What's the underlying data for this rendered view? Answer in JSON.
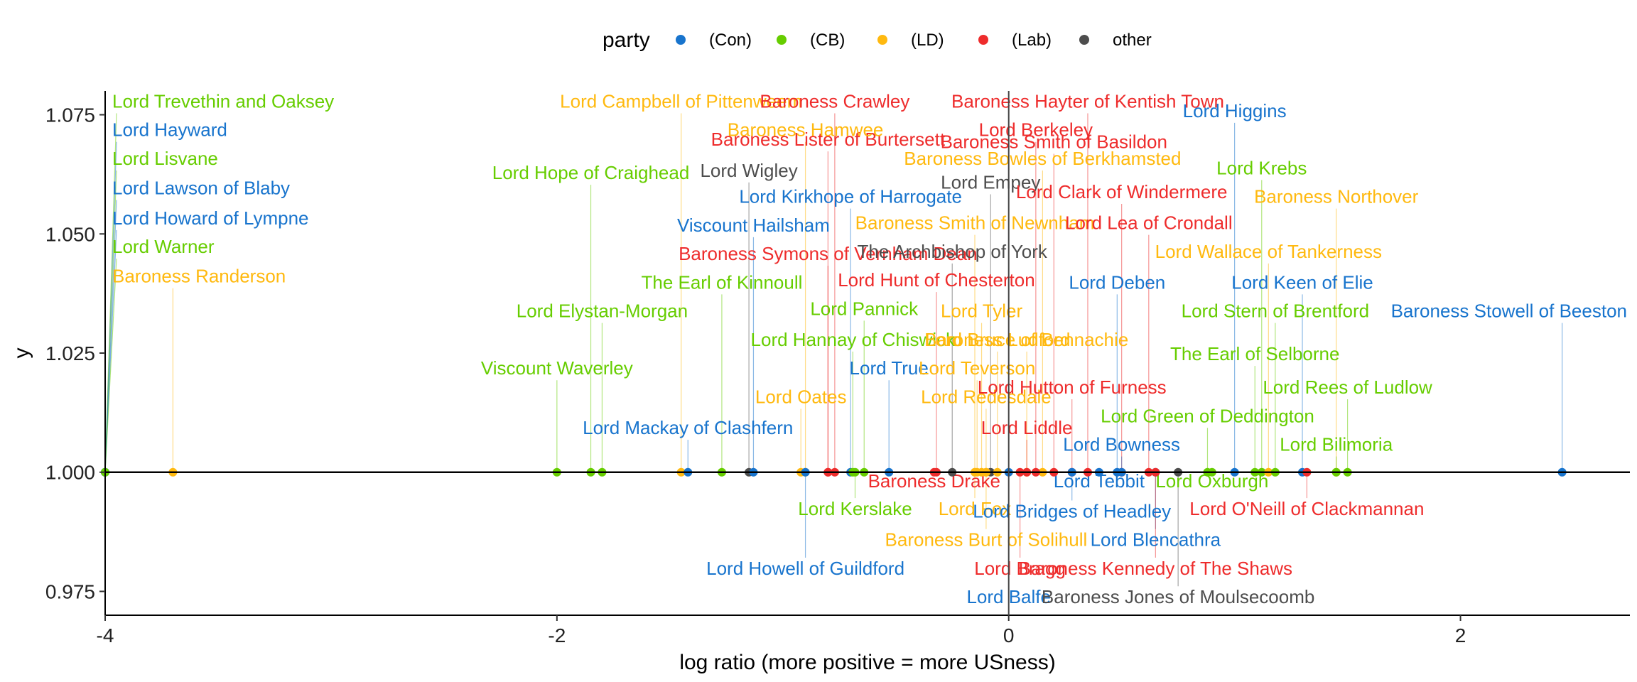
{
  "chart_data": {
    "type": "scatter",
    "title": "",
    "xlabel": "log ratio (more positive = more USness)",
    "ylabel": "y",
    "xlim": [
      -4,
      2.75
    ],
    "ylim": [
      0.97,
      1.08
    ],
    "x_ticks": [
      "-4",
      "-2",
      "0",
      "2"
    ],
    "x_tick_values": [
      -4,
      -2,
      0,
      2
    ],
    "y_ticks": [
      "0.975",
      "1.000",
      "1.025",
      "1.050",
      "1.075"
    ],
    "y_tick_values": [
      0.975,
      1.0,
      1.025,
      1.05,
      1.075
    ],
    "grid": false,
    "legend": {
      "title": "party",
      "placement": "top",
      "entries": [
        {
          "key": "Con",
          "label": "(Con)",
          "color": "#1874CD"
        },
        {
          "key": "CB",
          "label": "(CB)",
          "color": "#66CD00"
        },
        {
          "key": "LD",
          "label": "(LD)",
          "color": "#FFB90F"
        },
        {
          "key": "Lab",
          "label": "(Lab)",
          "color": "#EE2C2C"
        },
        {
          "key": "other",
          "label": "other",
          "color": "#4D4D4D"
        }
      ]
    },
    "points": [
      {
        "name": "Lord Trevethin and Oaksey",
        "party": "CB",
        "x": -4.0,
        "label_y": 1.0765
      },
      {
        "name": "Lord Hayward",
        "party": "Con",
        "x": -4.0,
        "label_y": 1.0705
      },
      {
        "name": "Lord Lisvane",
        "party": "CB",
        "x": -4.0,
        "label_y": 1.0645
      },
      {
        "name": "Lord Lawson of Blaby",
        "party": "Con",
        "x": -4.0,
        "label_y": 1.0583
      },
      {
        "name": "Lord Howard of Lympne",
        "party": "Con",
        "x": -4.0,
        "label_y": 1.052
      },
      {
        "name": "Lord Warner",
        "party": "CB",
        "x": -4.0,
        "label_y": 1.046
      },
      {
        "name": "Baroness Randerson",
        "party": "LD",
        "x": -3.7,
        "label_y": 1.0398
      },
      {
        "name": "Lord Hope of Craighead",
        "party": "CB",
        "x": -1.85,
        "label_y": 1.0615
      },
      {
        "name": "Baroness Lister of Burtersett",
        "party": "Lab",
        "x": -0.8,
        "label_y": 1.0685
      },
      {
        "name": "Lord Campbell of Pittenweem",
        "party": "LD",
        "x": -1.45,
        "label_y": 1.0765
      },
      {
        "name": "Baroness Crawley",
        "party": "Lab",
        "x": -0.77,
        "label_y": 1.0765
      },
      {
        "name": "Baroness Hamwee",
        "party": "LD",
        "x": -0.9,
        "label_y": 1.0705
      },
      {
        "name": "Lord Wigley",
        "party": "other",
        "x": -1.15,
        "label_y": 1.062
      },
      {
        "name": "Lord Kirkhope of Harrogate",
        "party": "Con",
        "x": -0.7,
        "label_y": 1.0565
      },
      {
        "name": "Viscount Hailsham",
        "party": "Con",
        "x": -1.13,
        "label_y": 1.0505
      },
      {
        "name": "Baroness Symons of Vernham Dean",
        "party": "Lab",
        "x": -0.8,
        "label_y": 1.0445
      },
      {
        "name": "The Earl of Kinnoull",
        "party": "CB",
        "x": -1.27,
        "label_y": 1.0385
      },
      {
        "name": "Lord Elystan-Morgan",
        "party": "CB",
        "x": -1.8,
        "label_y": 1.0325
      },
      {
        "name": "Lord Hannay of Chiswick",
        "party": "CB",
        "x": -0.69,
        "label_y": 1.0265
      },
      {
        "name": "Viscount Waverley",
        "party": "CB",
        "x": -2.0,
        "label_y": 1.0205
      },
      {
        "name": "Lord Mackay of Clashfern",
        "party": "Con",
        "x": -1.42,
        "label_y": 1.008
      },
      {
        "name": "Lord Oates",
        "party": "LD",
        "x": -0.92,
        "label_y": 1.0145
      },
      {
        "name": "Lord Pannick",
        "party": "CB",
        "x": -0.64,
        "label_y": 1.033
      },
      {
        "name": "Lord True",
        "party": "Con",
        "x": -0.53,
        "label_y": 1.0205
      },
      {
        "name": "Lord Hunt of Chesterton",
        "party": "Lab",
        "x": -0.32,
        "label_y": 1.039
      },
      {
        "name": "The Archbishop of York",
        "party": "other",
        "x": -0.25,
        "label_y": 1.045
      },
      {
        "name": "Baroness Hayter of Kentish Town",
        "party": "Lab",
        "x": 0.35,
        "label_y": 1.0765
      },
      {
        "name": "Lord Empey",
        "party": "other",
        "x": -0.08,
        "label_y": 1.0595
      },
      {
        "name": "Baroness Bowles of Berkhamsted",
        "party": "LD",
        "x": 0.15,
        "label_y": 1.0645
      },
      {
        "name": "Lord Berkeley",
        "party": "Lab",
        "x": 0.12,
        "label_y": 1.0705
      },
      {
        "name": "Baroness Smith of Basildon",
        "party": "Lab",
        "x": 0.2,
        "label_y": 1.068
      },
      {
        "name": "Lord Clark of Windermere",
        "party": "Lab",
        "x": 0.5,
        "label_y": 1.0575
      },
      {
        "name": "Baroness Smith of Newnham",
        "party": "LD",
        "x": -0.15,
        "label_y": 1.051
      },
      {
        "name": "Lord Lea of Crondall",
        "party": "Lab",
        "x": 0.62,
        "label_y": 1.051
      },
      {
        "name": "Lord Deben",
        "party": "Con",
        "x": 0.48,
        "label_y": 1.0385
      },
      {
        "name": "Lord Tyler",
        "party": "LD",
        "x": -0.12,
        "label_y": 1.0325
      },
      {
        "name": "Baroness Ludford",
        "party": "LD",
        "x": -0.05,
        "label_y": 1.0265
      },
      {
        "name": "Lord Bruce of Bennachie",
        "party": "LD",
        "x": 0.08,
        "label_y": 1.0265
      },
      {
        "name": "Lord Teverson",
        "party": "LD",
        "x": -0.14,
        "label_y": 1.0205
      },
      {
        "name": "Lord Redesdale",
        "party": "LD",
        "x": -0.1,
        "label_y": 1.0145
      },
      {
        "name": "Lord Hutton of Furness",
        "party": "Lab",
        "x": 0.28,
        "label_y": 1.0165
      },
      {
        "name": "Lord Liddle",
        "party": "Lab",
        "x": 0.08,
        "label_y": 1.008
      },
      {
        "name": "Lord Higgins",
        "party": "Con",
        "x": 1.0,
        "label_y": 1.0745
      },
      {
        "name": "Lord Krebs",
        "party": "CB",
        "x": 1.12,
        "label_y": 1.0625
      },
      {
        "name": "Baroness Northover",
        "party": "LD",
        "x": 1.45,
        "label_y": 1.0565
      },
      {
        "name": "Lord Wallace of Tankerness",
        "party": "LD",
        "x": 1.15,
        "label_y": 1.045
      },
      {
        "name": "Lord Keen of Elie",
        "party": "Con",
        "x": 1.3,
        "label_y": 1.0385
      },
      {
        "name": "Lord Stern of Brentford",
        "party": "CB",
        "x": 1.18,
        "label_y": 1.0325
      },
      {
        "name": "Baroness Stowell of Beeston",
        "party": "Con",
        "x": 2.45,
        "label_y": 1.0325
      },
      {
        "name": "The Earl of Selborne",
        "party": "CB",
        "x": 1.09,
        "label_y": 1.0235
      },
      {
        "name": "Lord Rees of Ludlow",
        "party": "CB",
        "x": 1.5,
        "label_y": 1.0165
      },
      {
        "name": "Lord Green of Deddington",
        "party": "CB",
        "x": 0.88,
        "label_y": 1.0105
      },
      {
        "name": "Lord Bowness",
        "party": "Con",
        "x": 0.5,
        "label_y": 1.0045
      },
      {
        "name": "Lord Bilimoria",
        "party": "CB",
        "x": 1.45,
        "label_y": 1.0045
      },
      {
        "name": "Baroness Drake",
        "party": "Lab",
        "x": -0.33,
        "label_y": 0.9968
      },
      {
        "name": "Lord Tebbit",
        "party": "Con",
        "x": 0.4,
        "label_y": 0.9968
      },
      {
        "name": "Lord Oxburgh",
        "party": "CB",
        "x": 0.9,
        "label_y": 0.9968
      },
      {
        "name": "Lord Kerslake",
        "party": "CB",
        "x": -0.68,
        "label_y": 0.991
      },
      {
        "name": "Lord Fox",
        "party": "LD",
        "x": -0.15,
        "label_y": 0.991
      },
      {
        "name": "Lord Bridges of Headley",
        "party": "Con",
        "x": 0.28,
        "label_y": 0.9905
      },
      {
        "name": "Lord O'Neill of Clackmannan",
        "party": "Lab",
        "x": 1.32,
        "label_y": 0.991
      },
      {
        "name": "Baroness Burt of Solihull",
        "party": "LD",
        "x": -0.1,
        "label_y": 0.9845
      },
      {
        "name": "Lord Blencathra",
        "party": "Con",
        "x": 0.65,
        "label_y": 0.9845
      },
      {
        "name": "Lord Howell of Guildford",
        "party": "Con",
        "x": -0.9,
        "label_y": 0.9785
      },
      {
        "name": "Lord Bragg",
        "party": "Lab",
        "x": 0.05,
        "label_y": 0.9785
      },
      {
        "name": "Baroness Kennedy of The Shaws",
        "party": "Lab",
        "x": 0.65,
        "label_y": 0.9785
      },
      {
        "name": "Lord Balfe",
        "party": "Con",
        "x": 0.0,
        "label_y": 0.9725
      },
      {
        "name": "Baroness Jones of Moulsecoomb",
        "party": "other",
        "x": 0.75,
        "label_y": 0.9725
      }
    ]
  }
}
